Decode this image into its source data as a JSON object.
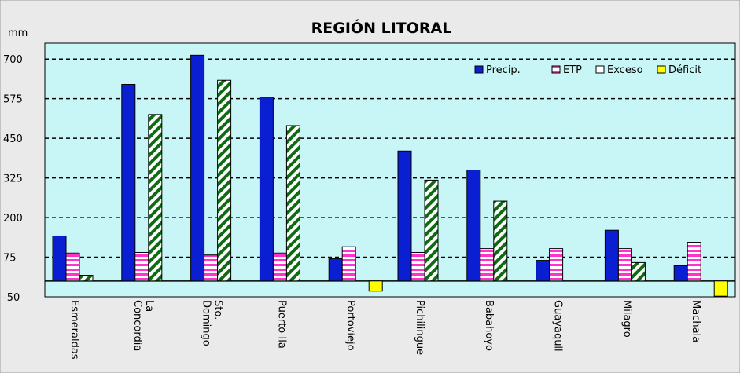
{
  "chart_data": {
    "type": "bar",
    "title": "REGIÓN LITORAL",
    "ylabel": "mm",
    "xlabel": "",
    "ylim": [
      -50,
      750
    ],
    "yticks": [
      -50,
      75,
      200,
      325,
      450,
      575,
      700
    ],
    "grid": true,
    "legend_position": "top-right",
    "categories": [
      [
        "Esmeraldas"
      ],
      [
        "La",
        "Concordia"
      ],
      [
        "Sto.",
        "Domingo"
      ],
      [
        "Puerto Ila"
      ],
      [
        "Portoviejo"
      ],
      [
        "Pichilingue"
      ],
      [
        "Babahoyo"
      ],
      [
        "Guayaquil"
      ],
      [
        "Milagro"
      ],
      [
        "Machala"
      ]
    ],
    "series": [
      {
        "name": "Precip.",
        "color": "#0a1ed2",
        "pattern": "solid",
        "values": [
          142,
          620,
          712,
          580,
          70,
          410,
          350,
          65,
          160,
          48
        ]
      },
      {
        "name": "ETP",
        "color": "#ff33cc",
        "pattern": "horizontal-stripes",
        "values": [
          88,
          90,
          82,
          88,
          108,
          90,
          102,
          102,
          102,
          122
        ]
      },
      {
        "name": "Exceso",
        "color": "#0e6b12",
        "pattern": "diagonal-stripes",
        "values": [
          18,
          525,
          633,
          490,
          0,
          318,
          252,
          0,
          58,
          0
        ]
      },
      {
        "name": "Déficit",
        "color": "#ffff00",
        "pattern": "solid",
        "values": [
          0,
          0,
          0,
          0,
          -32,
          0,
          0,
          0,
          0,
          -48
        ]
      }
    ]
  }
}
